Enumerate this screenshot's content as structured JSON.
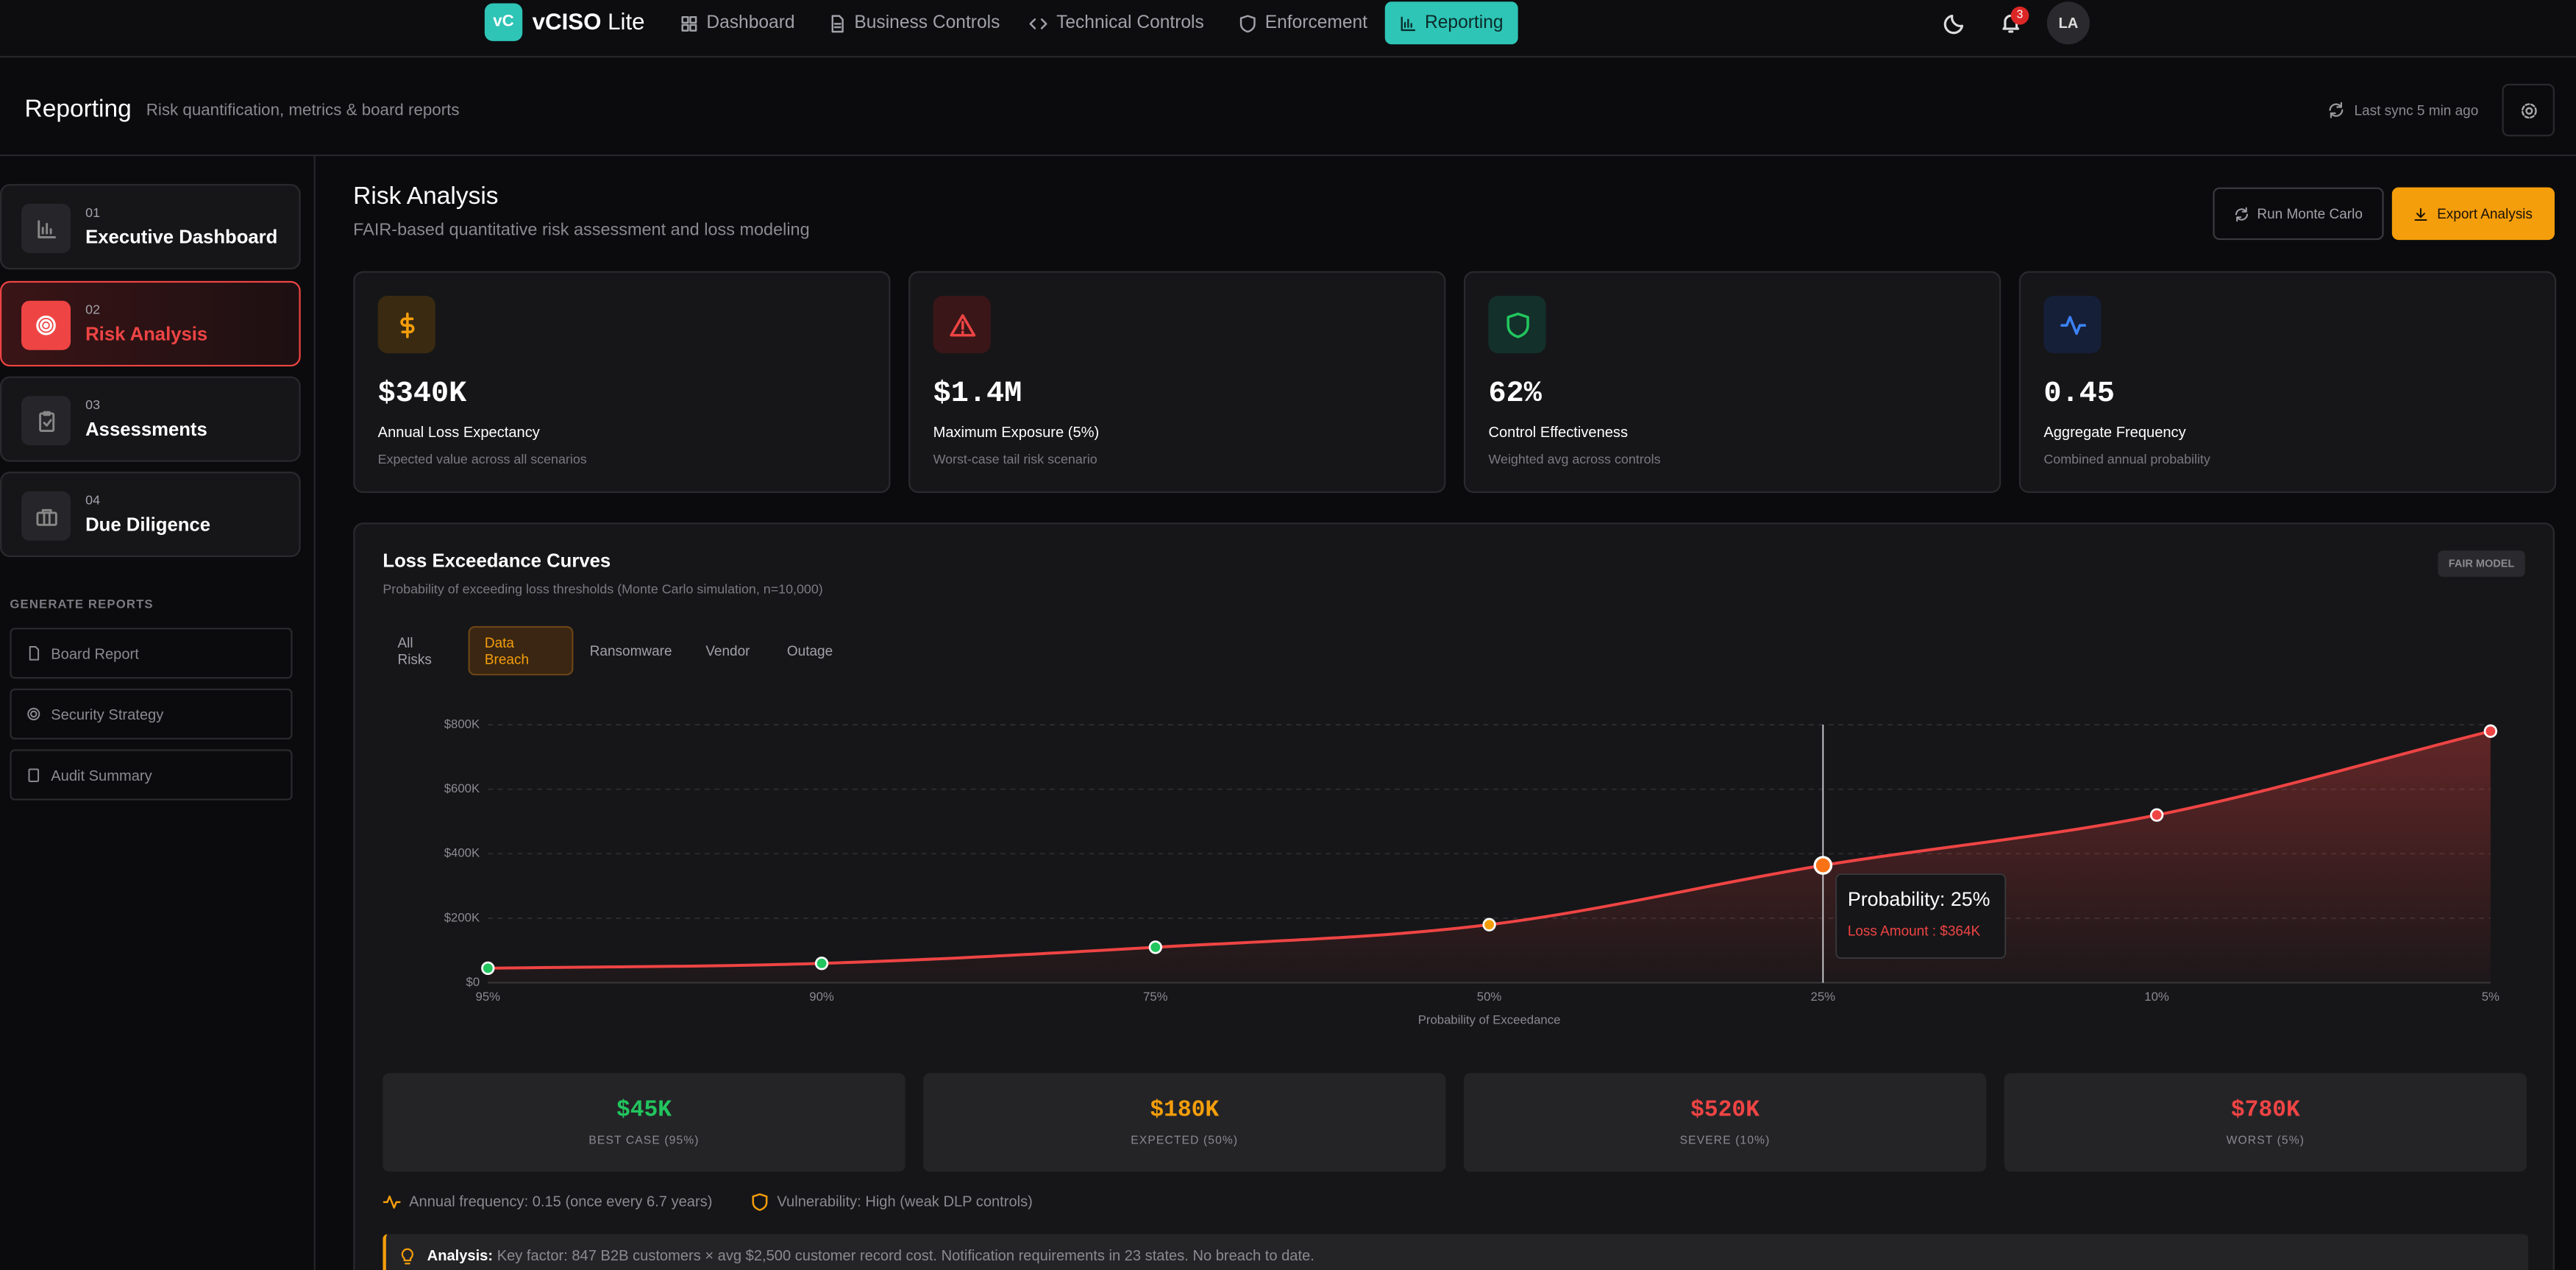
{
  "nav": {
    "logo": "vC",
    "brand": "vCISO",
    "brand_suffix": "Lite",
    "items": [
      "Dashboard",
      "Business Controls",
      "Technical Controls",
      "Enforcement",
      "Reporting"
    ],
    "notifications": "3",
    "avatar": "LA"
  },
  "header": {
    "title": "Reporting",
    "subtitle": "Risk quantification, metrics & board reports",
    "sync": "Last sync 5 min ago"
  },
  "sidebar": {
    "items": [
      {
        "number": "01",
        "label": "Executive Dashboard"
      },
      {
        "number": "02",
        "label": "Risk Analysis"
      },
      {
        "number": "03",
        "label": "Assessments"
      },
      {
        "number": "04",
        "label": "Due Diligence"
      }
    ],
    "section": "GENERATE REPORTS",
    "reports": [
      "Board Report",
      "Security Strategy",
      "Audit Summary"
    ]
  },
  "page": {
    "title": "Risk Analysis",
    "subtitle": "FAIR-based quantitative risk assessment and loss modeling",
    "actions": [
      "Run Monte Carlo",
      "Export Analysis"
    ]
  },
  "kpis": [
    {
      "value": "$340K",
      "label": "Annual Loss Expectancy",
      "note": "Expected value across all scenarios"
    },
    {
      "value": "$1.4M",
      "label": "Maximum Exposure (5%)",
      "note": "Worst-case tail risk scenario"
    },
    {
      "value": "62%",
      "label": "Control Effectiveness",
      "note": "Weighted avg across controls"
    },
    {
      "value": "0.45",
      "label": "Aggregate Frequency",
      "note": "Combined annual probability"
    }
  ],
  "chart_data": {
    "type": "line",
    "title": "Loss Exceedance Curves",
    "subtitle": "Probability of exceeding loss thresholds (Monte Carlo simulation, n=10,000)",
    "badge": "FAIR MODEL",
    "tabs": [
      "All Risks",
      "Data Breach",
      "Ransomware",
      "Vendor",
      "Outage"
    ],
    "x_label": "Probability of Exceedance",
    "categories": [
      "95%",
      "90%",
      "75%",
      "50%",
      "25%",
      "10%",
      "5%"
    ],
    "values": [
      45000,
      60000,
      110000,
      180000,
      364000,
      520000,
      780000
    ],
    "color": "#ef4444",
    "point_colors": [
      "#22c55e",
      "#22c55e",
      "#22c55e",
      "#f59e0b",
      "#f97316",
      "#ef4444",
      "#ef4444"
    ],
    "ylim": [
      0,
      800000
    ],
    "yticks": [
      {
        "value": 0,
        "label": "$0"
      },
      {
        "value": 200000,
        "label": "$200K"
      },
      {
        "value": 400000,
        "label": "$400K"
      },
      {
        "value": 600000,
        "label": "$600K"
      },
      {
        "value": 800000,
        "label": "$800K"
      }
    ],
    "grid": true,
    "tooltip": {
      "title": "Probability: 25%",
      "label": "Loss Amount : $364K"
    }
  },
  "scenarios": [
    {
      "value": "$45K",
      "label": "BEST CASE (95%)",
      "color": "#22c55e"
    },
    {
      "value": "$180K",
      "label": "EXPECTED (50%)",
      "color": "#f59e0b"
    },
    {
      "value": "$520K",
      "label": "SEVERE (10%)",
      "color": "#ef4444"
    },
    {
      "value": "$780K",
      "label": "WORST (5%)",
      "color": "#ef4444"
    }
  ],
  "info": [
    "Annual frequency: 0.15 (once every 6.7 years)",
    "Vulnerability: High (weak DLP controls)"
  ],
  "analysis": {
    "label": "Analysis:",
    "text": "Key factor: 847 B2B customers × avg $2,500 customer record cost. Notification requirements in 23 states. No breach to date."
  }
}
